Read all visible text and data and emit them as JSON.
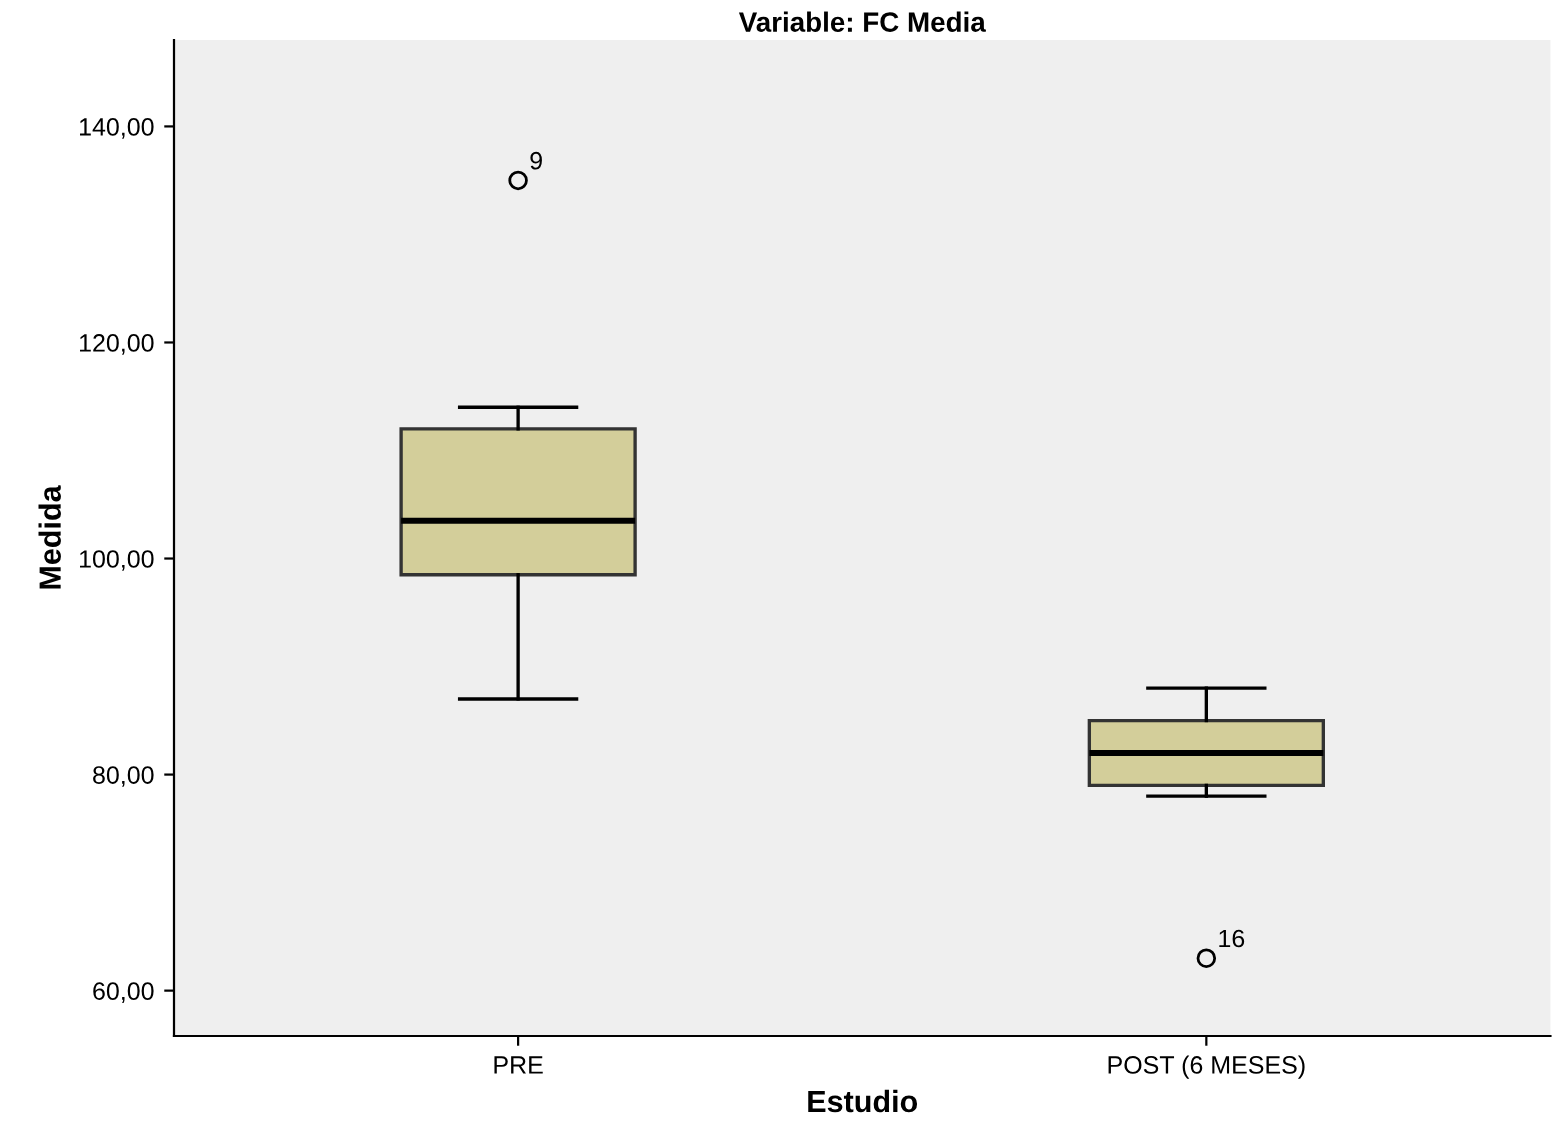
{
  "chart_data": {
    "type": "box",
    "title": "Variable: FC Media",
    "xlabel": "Estudio",
    "ylabel": "Medida",
    "categories": [
      "PRE",
      "POST (6 MESES)"
    ],
    "boxes": [
      {
        "low": 87,
        "q1": 98.5,
        "median": 103.5,
        "q3": 112,
        "high": 114,
        "outliers": [
          135
        ]
      },
      {
        "low": 78,
        "q1": 79,
        "median": 82,
        "q3": 85,
        "high": 88,
        "outliers": [
          63
        ]
      }
    ],
    "color": "#d3ce9a",
    "ylim": [
      55.8,
      148
    ],
    "yticks": [
      {
        "value": 60,
        "label": "60,00"
      },
      {
        "value": 80,
        "label": "80,00"
      },
      {
        "value": 100,
        "label": "100,00"
      },
      {
        "value": 120,
        "label": "120,00"
      },
      {
        "value": 140,
        "label": "140,00"
      }
    ],
    "annotations": [
      "9",
      "16"
    ],
    "grid": false
  }
}
